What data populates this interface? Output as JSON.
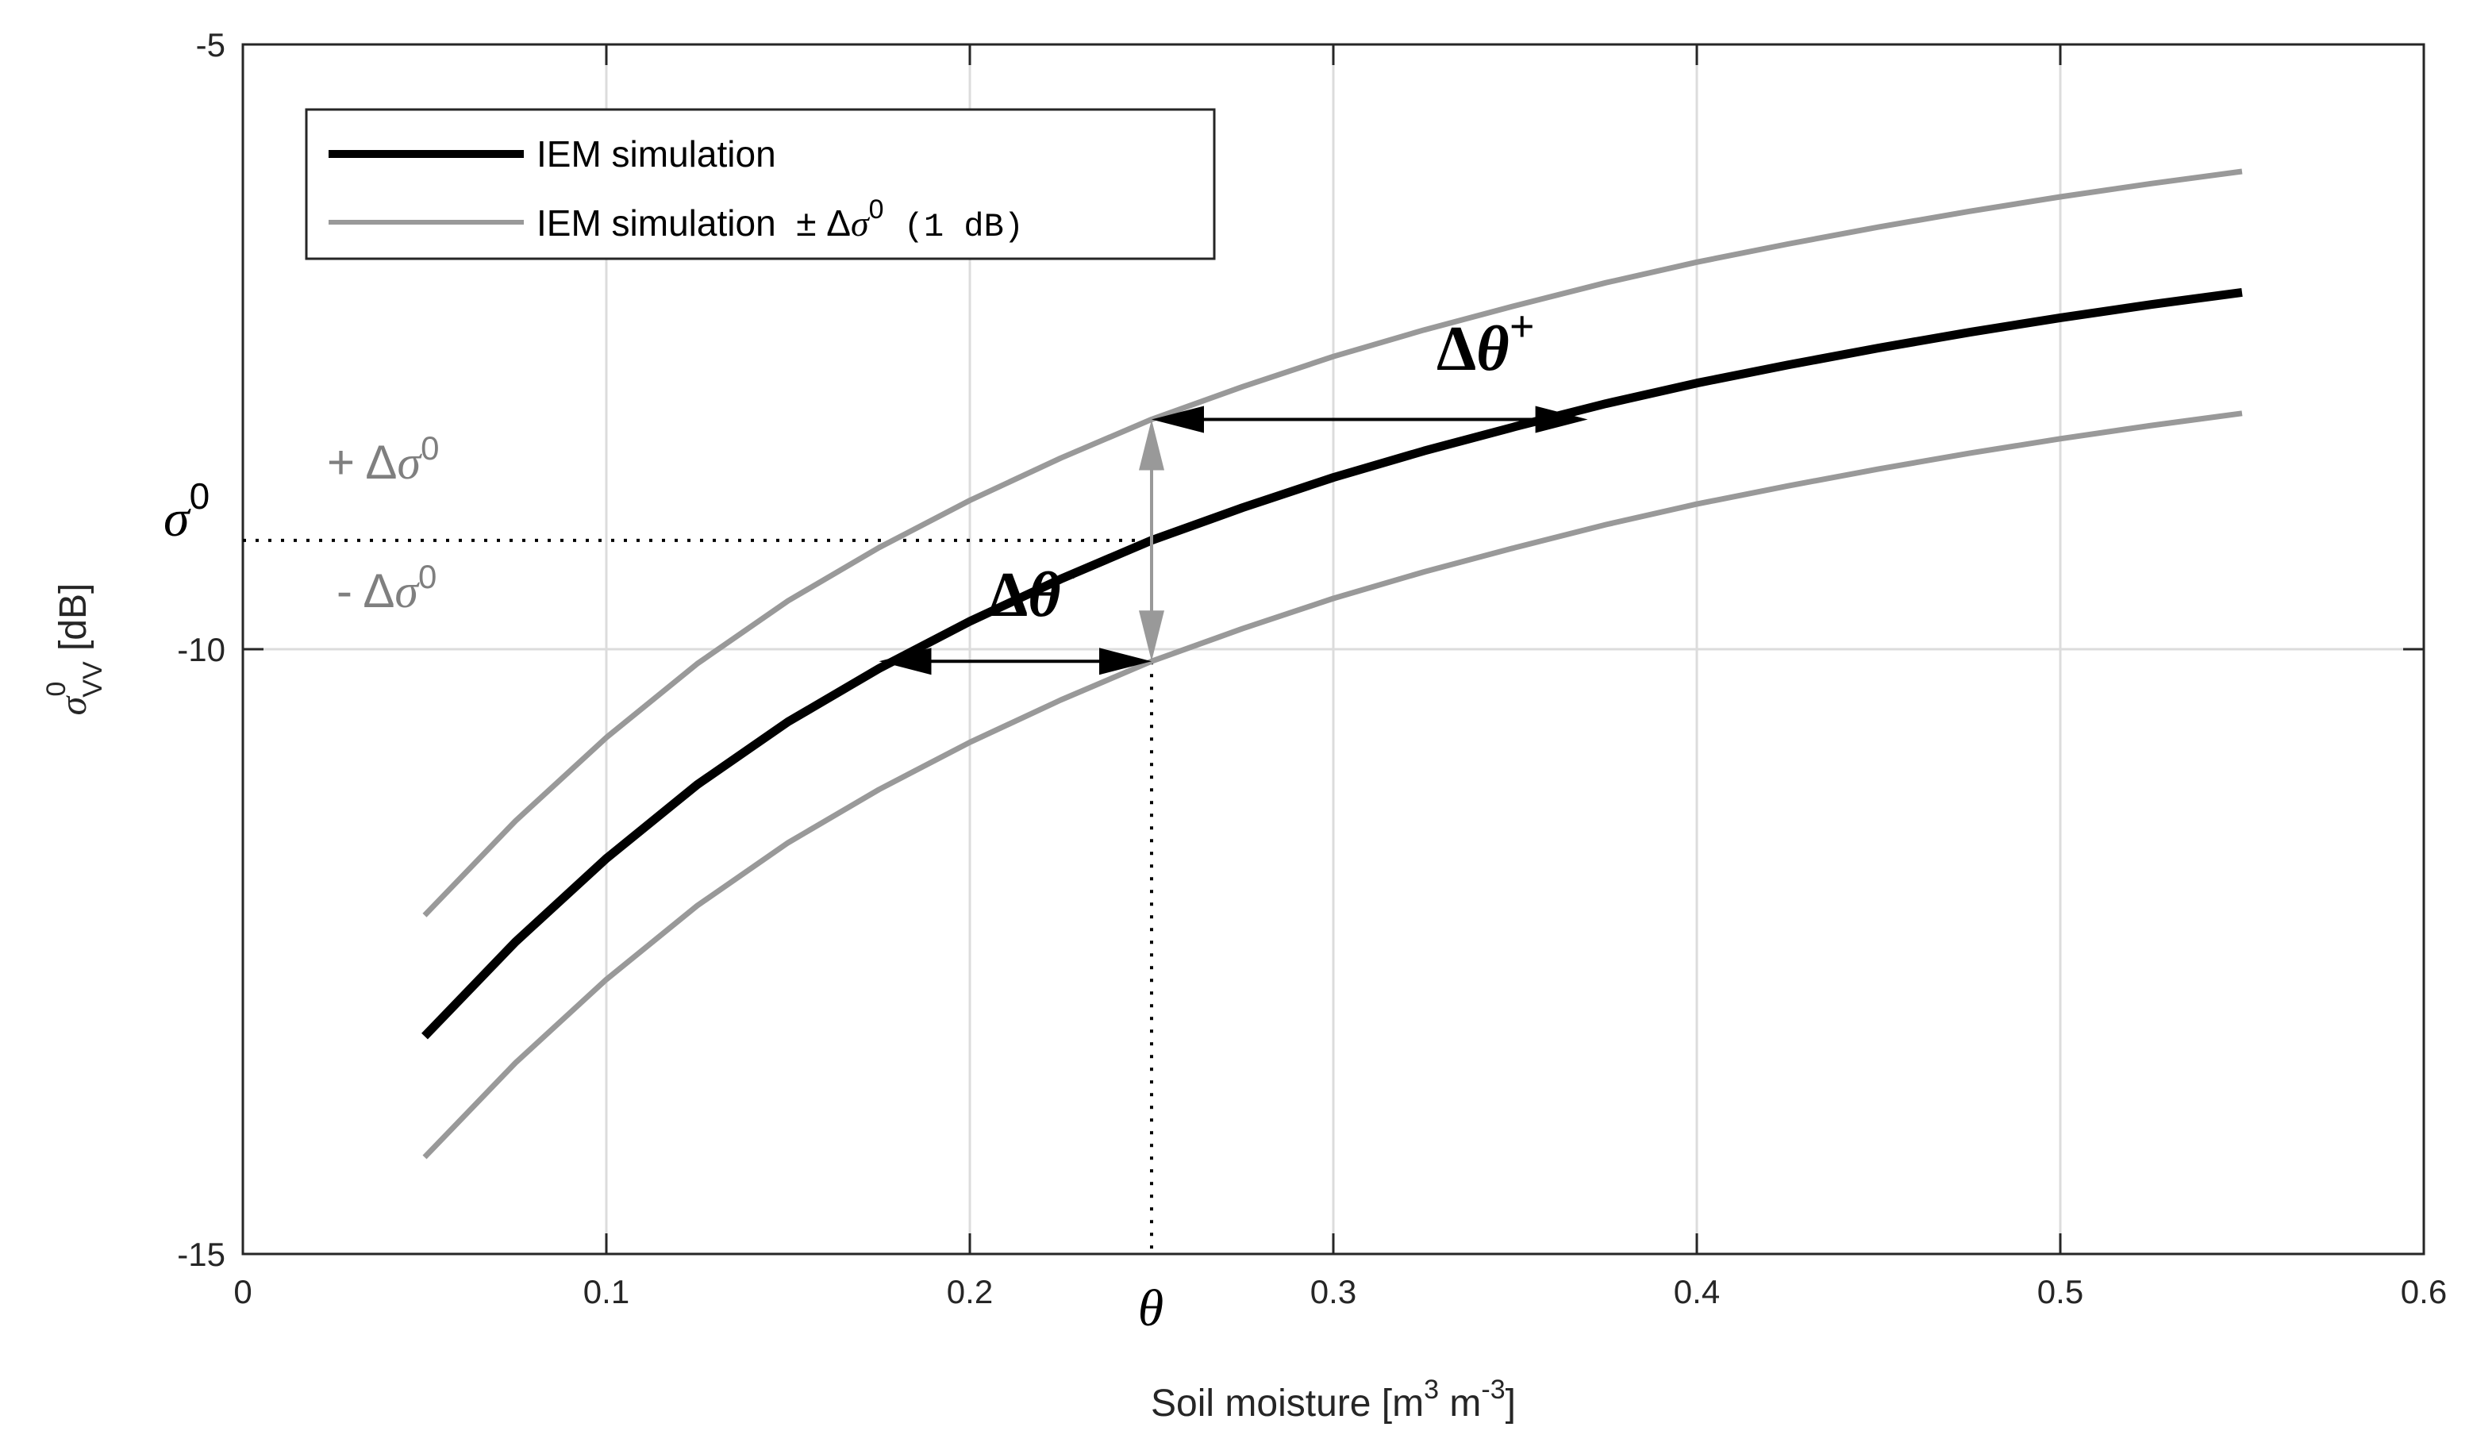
{
  "chart_data": {
    "type": "line",
    "title": "",
    "xlabel_main": "Soil moisture [m",
    "xlabel_exp1": "3",
    "xlabel_mid": " m",
    "xlabel_exp2": "-3",
    "xlabel_end": "]",
    "ylabel_symbol": "σ",
    "ylabel_sup": "0",
    "ylabel_sub": "VV",
    "ylabel_unit": " [dB]",
    "xlim": [
      0,
      0.6
    ],
    "ylim": [
      -15,
      -5
    ],
    "x_ticks": [
      0,
      0.1,
      0.2,
      0.3,
      0.4,
      0.5,
      0.6
    ],
    "x_tick_labels": [
      "0",
      "0.1",
      "0.2",
      "0.3",
      "0.4",
      "0.5",
      "0.6"
    ],
    "y_ticks": [
      -5,
      -10,
      -15
    ],
    "y_tick_labels": [
      "-5",
      "-10",
      "-15"
    ],
    "grid": true,
    "x": [
      0.05,
      0.075,
      0.1,
      0.125,
      0.15,
      0.175,
      0.2,
      0.225,
      0.25,
      0.275,
      0.3,
      0.325,
      0.35,
      0.375,
      0.4,
      0.425,
      0.45,
      0.475,
      0.5,
      0.525,
      0.55
    ],
    "series": [
      {
        "name": "IEM simulation",
        "color": "#000000",
        "values": [
          -13.2,
          -12.42,
          -11.73,
          -11.12,
          -10.6,
          -10.16,
          -9.77,
          -9.42,
          -9.1,
          -8.83,
          -8.58,
          -8.36,
          -8.16,
          -7.97,
          -7.8,
          -7.65,
          -7.51,
          -7.38,
          -7.26,
          -7.15,
          -7.05
        ]
      },
      {
        "name": "IEM simulation ± Δσ0 (1 dB) upper",
        "color": "#999999",
        "values": [
          -12.2,
          -11.42,
          -10.73,
          -10.12,
          -9.6,
          -9.16,
          -8.77,
          -8.42,
          -8.1,
          -7.83,
          -7.58,
          -7.36,
          -7.16,
          -6.97,
          -6.8,
          -6.65,
          -6.51,
          -6.38,
          -6.26,
          -6.15,
          -6.05
        ]
      },
      {
        "name": "IEM simulation ± Δσ0 (1 dB) lower",
        "color": "#999999",
        "values": [
          -14.2,
          -13.42,
          -12.73,
          -12.12,
          -11.6,
          -11.16,
          -10.77,
          -10.42,
          -10.1,
          -9.83,
          -9.58,
          -9.36,
          -9.16,
          -8.97,
          -8.8,
          -8.65,
          -8.51,
          -8.38,
          -8.26,
          -8.15,
          -8.05
        ]
      }
    ],
    "legend": {
      "position": "top-left",
      "entries": [
        {
          "label": "IEM simulation",
          "color": "#000000"
        },
        {
          "label_prefix": "IEM simulation  ± Δ",
          "label_symbol": "σ",
          "label_sup": "0",
          "label_suffix": " (1 dB)",
          "color": "#999999"
        }
      ]
    },
    "reference": {
      "theta_x": 0.25,
      "sigma0_y": -9.1
    },
    "delta_plus": {
      "from_x": 0.25,
      "to_x": 0.37,
      "y": -8.1
    },
    "delta_minus": {
      "from_x": 0.175,
      "to_x": 0.25,
      "y": -10.1
    },
    "annotations": {
      "plus_delta_sigma": {
        "prefix": "+ Δ",
        "symbol": "σ",
        "sup": "0"
      },
      "minus_delta_sigma": {
        "prefix": "- Δ",
        "symbol": "σ",
        "sup": "0"
      },
      "sigma0": {
        "symbol": "σ",
        "sup": "0"
      },
      "theta": "θ",
      "delta_theta_plus": {
        "delta": "Δ",
        "theta": "θ",
        "sup": "+"
      },
      "delta_theta_minus": {
        "delta": "Δ",
        "theta": "θ",
        "sup": "-"
      }
    }
  }
}
